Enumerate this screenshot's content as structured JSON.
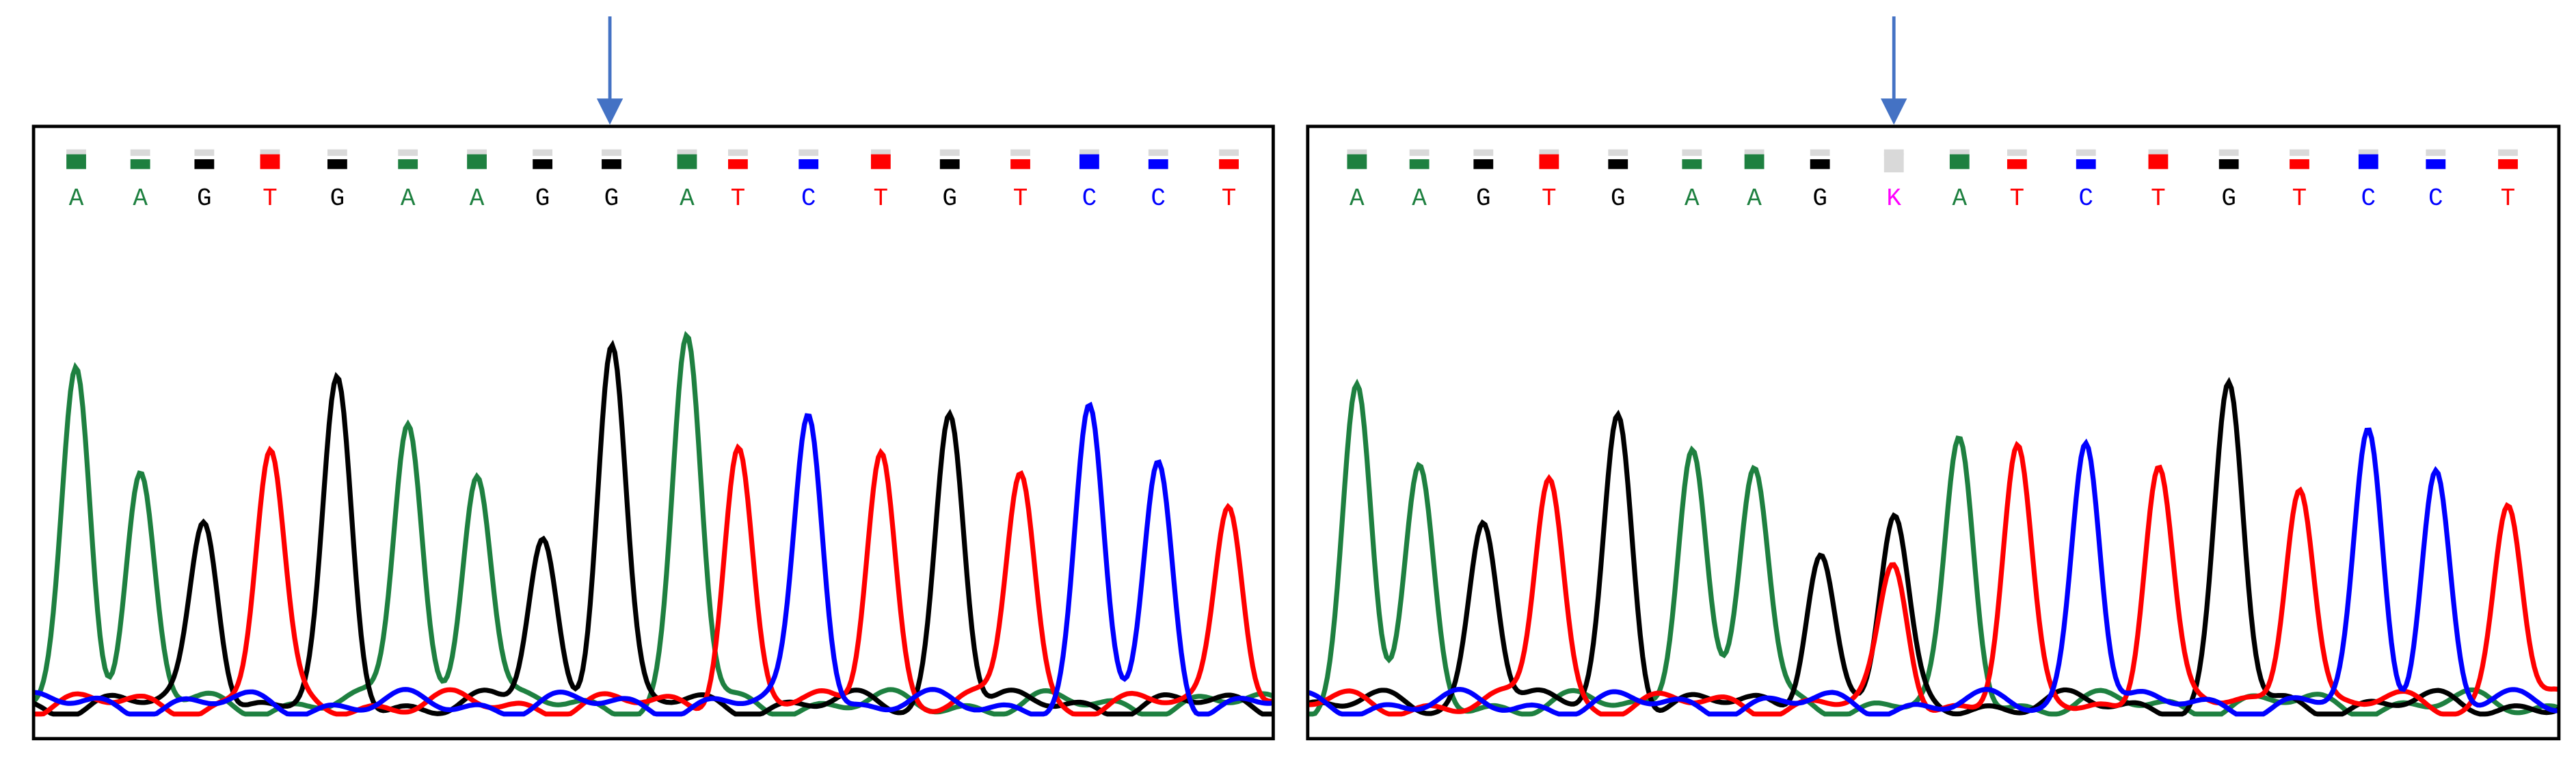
{
  "panels": [
    {
      "bases": [
        "A",
        "A",
        "G",
        "T",
        "G",
        "A",
        "A",
        "G",
        "G",
        "A",
        "T",
        "C",
        "T",
        "G",
        "T",
        "C",
        "C",
        "T"
      ]
    },
    {
      "bases": [
        "A",
        "A",
        "G",
        "T",
        "G",
        "A",
        "A",
        "G",
        "K",
        "A",
        "T",
        "C",
        "T",
        "G",
        "T",
        "C",
        "C",
        "T"
      ]
    }
  ]
}
